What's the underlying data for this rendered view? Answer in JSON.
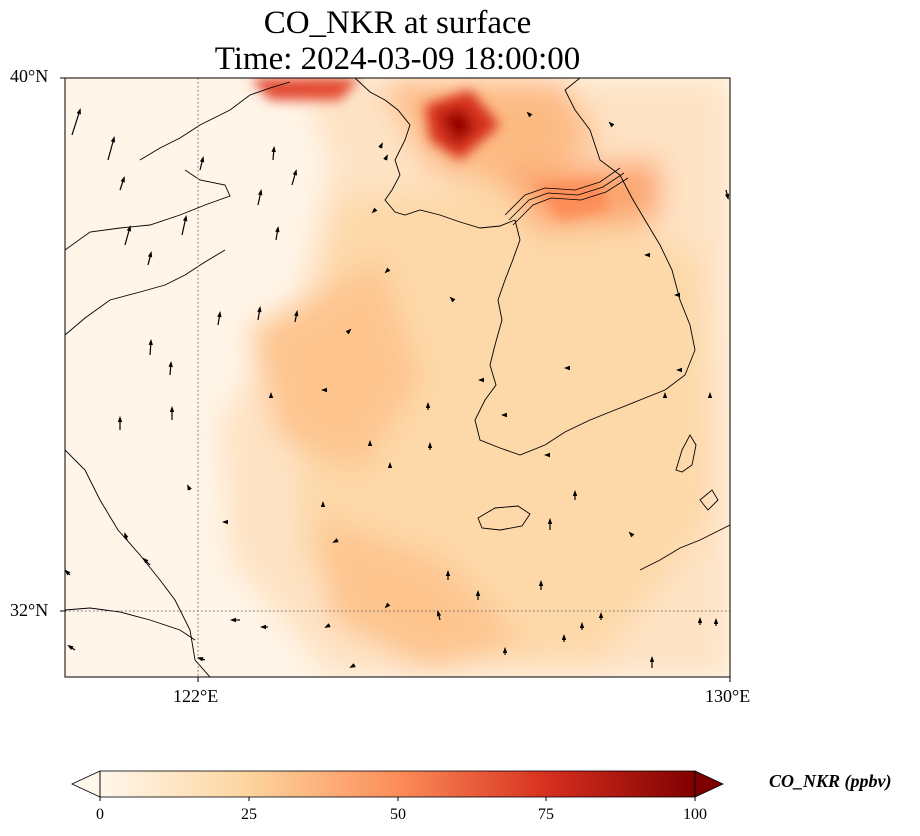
{
  "title": {
    "line1": "CO_NKR at surface",
    "line2": "Time: 2024-03-09 18:00:00"
  },
  "axes": {
    "lat_ticks": [
      {
        "label": "40°N",
        "value": 40
      },
      {
        "label": "32°N",
        "value": 32
      }
    ],
    "lon_ticks": [
      {
        "label": "122°E",
        "value": 122
      },
      {
        "label": "130°E",
        "value": 130
      }
    ],
    "lon_range": [
      120,
      130
    ],
    "lat_range": [
      31,
      40
    ],
    "gridlines": "dotted at 122°E and 32°N"
  },
  "colorbar": {
    "label": "CO_NKR (ppbv)",
    "ticks": [
      "0",
      "25",
      "50",
      "75",
      "100"
    ],
    "range": [
      0,
      100
    ],
    "colormap": "OrRd",
    "extend": "both"
  },
  "colors": {
    "low": "#fff7ec",
    "mid": "#fdbb84",
    "high": "#7f0000"
  },
  "features": {
    "coastlines": "black thin",
    "borders": "DMZ line across Korean peninsula",
    "wind_vectors": "black arrows"
  }
}
